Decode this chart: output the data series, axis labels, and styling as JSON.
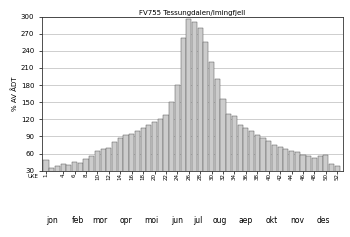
{
  "title": "FV755 Tessungdalen/Imingfjell",
  "ylabel": "% AV ÅDT",
  "xlabel_months": [
    "jon",
    "feb",
    "mor",
    "opr",
    "moi",
    "jun",
    "jul",
    "oug",
    "aep",
    "okt",
    "nov",
    "des"
  ],
  "week_tick_positions": [
    1,
    4,
    6,
    8,
    10,
    12,
    14,
    16,
    18,
    20,
    22,
    24,
    26,
    28,
    30,
    32,
    34,
    36,
    38,
    40,
    42,
    44,
    46,
    48,
    50,
    52
  ],
  "weeks": [
    1,
    2,
    3,
    4,
    5,
    6,
    7,
    8,
    9,
    10,
    11,
    12,
    13,
    14,
    15,
    16,
    17,
    18,
    19,
    20,
    21,
    22,
    23,
    24,
    25,
    26,
    27,
    28,
    29,
    30,
    31,
    32,
    33,
    34,
    35,
    36,
    37,
    38,
    39,
    40,
    41,
    42,
    43,
    44,
    45,
    46,
    47,
    48,
    49,
    50,
    51,
    52
  ],
  "values": [
    48,
    35,
    38,
    42,
    40,
    45,
    43,
    50,
    55,
    65,
    68,
    70,
    80,
    88,
    92,
    95,
    100,
    105,
    110,
    115,
    120,
    128,
    150,
    180,
    263,
    295,
    290,
    280,
    255,
    220,
    190,
    155,
    130,
    125,
    110,
    105,
    100,
    92,
    88,
    82,
    75,
    72,
    68,
    65,
    62,
    58,
    55,
    52,
    55,
    58,
    42,
    38
  ],
  "bar_color": "#cccccc",
  "bar_edge_color": "#555555",
  "ylim": [
    30,
    300
  ],
  "yticks": [
    30,
    60,
    90,
    120,
    150,
    180,
    210,
    240,
    270,
    300
  ],
  "xlim": [
    0.3,
    53.0
  ],
  "background_color": "#ffffff",
  "grid_color": "#aaaaaa",
  "month_centers": [
    2.0,
    6.5,
    10.5,
    15.0,
    19.5,
    24.0,
    27.5,
    31.5,
    36.0,
    40.5,
    45.0,
    49.5
  ],
  "title_fontsize": 5,
  "ylabel_fontsize": 5,
  "ytick_fontsize": 5,
  "xtick_fontsize": 4,
  "month_fontsize": 5.5
}
